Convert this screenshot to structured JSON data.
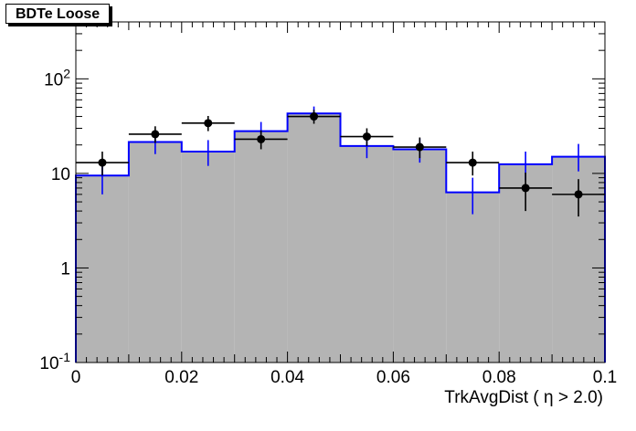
{
  "chart_data": {
    "type": "histogram",
    "title": "BDTe Loose",
    "xlabel": "TrkAvgDist ( η > 2.0)",
    "ylabel": "",
    "xlim": [
      0,
      0.1
    ],
    "ylim": [
      0.1,
      400
    ],
    "log_y": true,
    "grid": false,
    "bin_edges": [
      0,
      0.01,
      0.02,
      0.03,
      0.04,
      0.05,
      0.06,
      0.07,
      0.08,
      0.09,
      0.1
    ],
    "x_ticks": [
      {
        "value": 0,
        "label": "0"
      },
      {
        "value": 0.02,
        "label": "0.02"
      },
      {
        "value": 0.04,
        "label": "0.04"
      },
      {
        "value": 0.06,
        "label": "0.06"
      },
      {
        "value": 0.08,
        "label": "0.08"
      },
      {
        "value": 0.1,
        "label": "0.1"
      }
    ],
    "y_ticks": [
      {
        "value": 0.1,
        "base": "10",
        "exp": "-1"
      },
      {
        "value": 1,
        "base": "1",
        "exp": ""
      },
      {
        "value": 10,
        "base": "10",
        "exp": ""
      },
      {
        "value": 100,
        "base": "10",
        "exp": "2"
      }
    ],
    "series": [
      {
        "style": "filled-histogram",
        "color": "#b4b4b4",
        "values": [
          9.5,
          21.5,
          17,
          28,
          43,
          19.5,
          18,
          6.3,
          12.5,
          15
        ]
      },
      {
        "style": "step-with-errors",
        "color": "#0000ff",
        "values": [
          9.5,
          21.5,
          17,
          28,
          43,
          19.5,
          18,
          6.3,
          12.5,
          15
        ],
        "err_low": [
          3.5,
          5.5,
          5,
          6,
          7,
          5,
          5,
          2.6,
          4,
          4.5
        ],
        "err_high": [
          4,
          6.5,
          5.5,
          7,
          8,
          5.5,
          5.5,
          2.7,
          4.5,
          5.5
        ]
      },
      {
        "style": "points-with-errors",
        "color": "#000000",
        "x": [
          0.005,
          0.015,
          0.025,
          0.035,
          0.045,
          0.055,
          0.065,
          0.075,
          0.085,
          0.095
        ],
        "values": [
          13,
          26,
          34,
          23,
          40,
          24.5,
          19,
          13,
          7,
          6
        ],
        "err_low": [
          3.5,
          5,
          6,
          5,
          6.5,
          5,
          4.5,
          3.5,
          3,
          2.5
        ],
        "err_high": [
          4,
          5.5,
          6.5,
          5.5,
          7,
          5.5,
          5,
          4,
          3.2,
          2.7
        ]
      }
    ]
  }
}
